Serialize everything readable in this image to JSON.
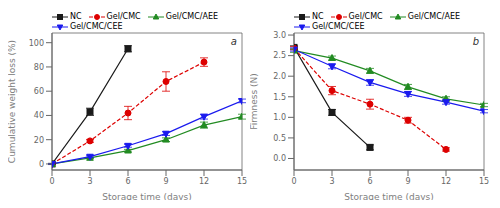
{
  "chart_data": [
    {
      "type": "line",
      "title": "a",
      "x_label": "Storage time (days)",
      "y_label": "Cumulative weight loss (%)",
      "x": [
        0,
        3,
        6,
        9,
        12,
        15
      ],
      "xlim": [
        0,
        15
      ],
      "xticks": [
        0,
        3,
        6,
        9,
        12,
        15
      ],
      "ylim": [
        -5,
        108
      ],
      "yticks": [
        0,
        20,
        40,
        60,
        80,
        100
      ],
      "grid": false,
      "legend": "upper left",
      "series": [
        {
          "name": "NC",
          "color": "#1a1a1a",
          "marker": "square",
          "line_style": "solid",
          "values": [
            0,
            43,
            95,
            null,
            null,
            null
          ],
          "errors": [
            0.5,
            3.0,
            2.5,
            null,
            null,
            null
          ]
        },
        {
          "name": "Gel/CMC",
          "color": "#dd0000",
          "marker": "circle",
          "line_style": "dashed",
          "values": [
            0,
            19,
            42,
            68,
            84,
            null
          ],
          "errors": [
            0.3,
            1.2,
            5.5,
            8.0,
            3.5,
            null
          ]
        },
        {
          "name": "Gel/CMC/AEE",
          "color": "#228B22",
          "marker": "triangle-up",
          "line_style": "solid",
          "values": [
            0,
            5,
            11,
            20,
            32,
            39
          ],
          "errors": [
            0.2,
            0.5,
            1.0,
            1.5,
            2.5,
            2.0
          ]
        },
        {
          "name": "Gel/CMC/CEE",
          "color": "#1a1aee",
          "marker": "triangle-down",
          "line_style": "solid",
          "values": [
            0,
            6,
            15,
            25,
            39,
            52
          ],
          "errors": [
            0.2,
            0.8,
            1.2,
            1.5,
            2.0,
            1.5
          ]
        }
      ]
    },
    {
      "type": "line",
      "title": "b",
      "x_label": "Storage time (days)",
      "y_label": "Firmness (N)",
      "x": [
        0,
        3,
        6,
        9,
        12,
        15
      ],
      "xlim": [
        0,
        15
      ],
      "xticks": [
        0,
        3,
        6,
        9,
        12,
        15
      ],
      "ylim": [
        -0.28,
        3.05
      ],
      "yticks": [
        {
          "value": 0,
          "label": "0.0"
        },
        0.5,
        {
          "value": 1,
          "label": "1.0"
        },
        1.5,
        {
          "value": 2,
          "label": "2.0"
        },
        2.5,
        {
          "value": 3,
          "label": "3.0"
        }
      ],
      "grid": false,
      "legend": "upper left",
      "series": [
        {
          "name": "NC",
          "color": "#1a1a1a",
          "marker": "square",
          "line_style": "solid",
          "values": [
            2.7,
            1.12,
            0.27,
            null,
            null,
            null
          ],
          "errors": [
            0.04,
            0.07,
            0.06,
            null,
            null,
            null
          ]
        },
        {
          "name": "Gel/CMC",
          "color": "#dd0000",
          "marker": "circle",
          "line_style": "dashed",
          "values": [
            2.68,
            1.65,
            1.32,
            0.93,
            0.22,
            null
          ],
          "errors": [
            0.04,
            0.1,
            0.12,
            0.07,
            0.04,
            null
          ]
        },
        {
          "name": "Gel/CMC/AEE",
          "color": "#228B22",
          "marker": "triangle-up",
          "line_style": "solid",
          "values": [
            2.62,
            2.44,
            2.13,
            1.74,
            1.45,
            1.3
          ],
          "errors": [
            0.04,
            0.05,
            0.06,
            0.06,
            0.05,
            0.04
          ]
        },
        {
          "name": "Gel/CMC/CEE",
          "color": "#1a1aee",
          "marker": "triangle-down",
          "line_style": "solid",
          "values": [
            2.65,
            2.24,
            1.85,
            1.57,
            1.37,
            1.15
          ],
          "errors": [
            0.04,
            0.06,
            0.07,
            0.06,
            0.05,
            0.04
          ]
        }
      ]
    }
  ]
}
